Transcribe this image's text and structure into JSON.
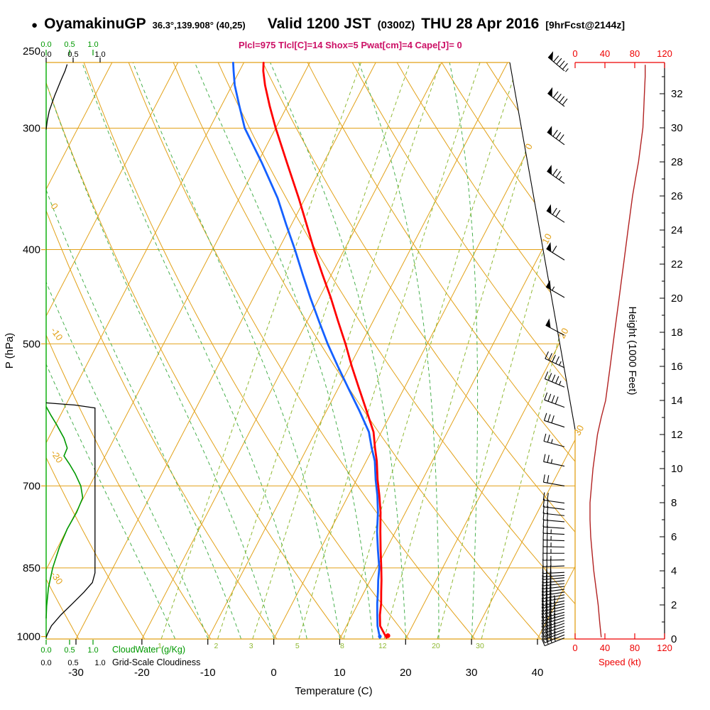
{
  "header": {
    "bullet": "●",
    "station": "OyamakinuGP",
    "coords": "36.3°,139.908° (40,25)",
    "valid": "Valid 1200 JST",
    "valid_z": "(0300Z)",
    "valid_date": "THU 28 Apr 2016",
    "fcst_tag": "[9hrFcst@2144z]",
    "indices_line": "Plcl=975 Tlcl[C]=14 Shox=5 Pwat[cm]=4 Cape[J]= 0"
  },
  "axis_titles": {
    "pressure": "P (hPa)",
    "temperature": "Temperature (C)",
    "height": "Height (1000 Feet)",
    "speed": "Speed (kt)"
  },
  "scale_labels": {
    "cloud_values": [
      "0.0",
      "0.5",
      "1.0"
    ],
    "cloudwater": "CloudWater (g/Kg)",
    "cloudiness": "Grid-Scale Cloudiness"
  },
  "colors": {
    "grid": "#e2a118",
    "mixing": "#8fb832",
    "moist": "#49b04f",
    "temperature": "#ff0000",
    "dewpoint": "#1560ff",
    "cloudwater": "#009900",
    "cloudiness": "#000000",
    "speed_axis": "#ee0000",
    "speed_curve": "#b22222",
    "indices": "#cc1166",
    "left_axis_green": "#00aa00",
    "barbs": "#000000"
  },
  "chart_data": {
    "type": "skewt_log_p_sounding",
    "pressure_ticks_hpa": [
      250,
      300,
      400,
      500,
      700,
      850,
      1000
    ],
    "temperature_ticks_c": [
      -30,
      -20,
      -10,
      0,
      10,
      20,
      30,
      40
    ],
    "height_ticks_kft": [
      0,
      2,
      4,
      6,
      8,
      10,
      12,
      14,
      16,
      18,
      20,
      22,
      24,
      26,
      28,
      30,
      32
    ],
    "speed_ticks_kt": [
      0,
      40,
      80,
      120
    ],
    "isotherm_label_values": [
      0,
      10,
      20,
      30
    ],
    "dry_adiabat_label_values": [
      0,
      -10,
      -20,
      -30
    ],
    "mixing_ratio_lines_gkg": [
      1,
      2,
      3,
      5,
      8,
      12,
      20,
      30
    ],
    "temperature_profile_p_c": [
      [
        1003,
        17
      ],
      [
        975,
        15.1
      ],
      [
        950,
        14.2
      ],
      [
        925,
        13.5
      ],
      [
        900,
        12.6
      ],
      [
        875,
        11.7
      ],
      [
        850,
        10.7
      ],
      [
        815,
        9.2
      ],
      [
        780,
        7.7
      ],
      [
        745,
        6.2
      ],
      [
        716,
        4.7
      ],
      [
        690,
        3.2
      ],
      [
        660,
        1.6
      ],
      [
        640,
        0.3
      ],
      [
        616,
        -1.2
      ],
      [
        585,
        -4.0
      ],
      [
        556,
        -6.8
      ],
      [
        528,
        -9.6
      ],
      [
        500,
        -12.4
      ],
      [
        474,
        -15.3
      ],
      [
        448,
        -18.3
      ],
      [
        424,
        -21.4
      ],
      [
        400,
        -24.6
      ],
      [
        377,
        -27.7
      ],
      [
        354,
        -31.0
      ],
      [
        326,
        -35.5
      ],
      [
        300,
        -40.0
      ],
      [
        285,
        -42.6
      ],
      [
        271,
        -45.0
      ],
      [
        262,
        -46.4
      ],
      [
        257,
        -47.0
      ]
    ],
    "dewpoint_profile_p_c": [
      [
        1003,
        16
      ],
      [
        975,
        14.7
      ],
      [
        950,
        13.8
      ],
      [
        925,
        12.9
      ],
      [
        900,
        12.1
      ],
      [
        875,
        11.2
      ],
      [
        850,
        10.4
      ],
      [
        815,
        8.8
      ],
      [
        780,
        7.2
      ],
      [
        745,
        5.8
      ],
      [
        716,
        4.4
      ],
      [
        690,
        2.9
      ],
      [
        660,
        1.3
      ],
      [
        640,
        -0.2
      ],
      [
        616,
        -1.9
      ],
      [
        585,
        -5.1
      ],
      [
        556,
        -8.4
      ],
      [
        528,
        -11.7
      ],
      [
        500,
        -15.1
      ],
      [
        474,
        -18.2
      ],
      [
        448,
        -21.4
      ],
      [
        424,
        -24.4
      ],
      [
        400,
        -27.5
      ],
      [
        377,
        -30.8
      ],
      [
        354,
        -34.2
      ],
      [
        326,
        -39.3
      ],
      [
        300,
        -44.7
      ],
      [
        285,
        -47.2
      ],
      [
        271,
        -49.6
      ],
      [
        262,
        -50.9
      ],
      [
        257,
        -51.6
      ]
    ],
    "cloudwater_profile_p_gkg": [
      [
        580,
        0
      ],
      [
        592,
        0.1
      ],
      [
        605,
        0.22
      ],
      [
        625,
        0.38
      ],
      [
        640,
        0.45
      ],
      [
        652,
        0.38
      ],
      [
        665,
        0.5
      ],
      [
        680,
        0.62
      ],
      [
        700,
        0.74
      ],
      [
        720,
        0.78
      ],
      [
        745,
        0.65
      ],
      [
        775,
        0.45
      ],
      [
        810,
        0.28
      ],
      [
        850,
        0.14
      ],
      [
        890,
        0.05
      ],
      [
        930,
        0.01
      ],
      [
        958,
        0
      ]
    ],
    "cloudiness_profile_segments": [
      [
        [
          258,
          0.4
        ],
        [
          262,
          0.36
        ],
        [
          268,
          0.28
        ],
        [
          278,
          0.16
        ],
        [
          288,
          0.06
        ],
        [
          295,
          0.02
        ],
        [
          301,
          0
        ]
      ],
      [
        [
          575,
          0
        ],
        [
          578,
          0.55
        ],
        [
          582,
          0.93
        ],
        [
          860,
          0.93
        ],
        [
          880,
          0.88
        ],
        [
          900,
          0.72
        ],
        [
          925,
          0.5
        ],
        [
          950,
          0.28
        ],
        [
          975,
          0.1
        ],
        [
          995,
          0.02
        ],
        [
          1002,
          0
        ]
      ]
    ],
    "wind_speed_profile_kft_kt": [
      [
        0.1,
        35
      ],
      [
        1,
        33
      ],
      [
        2,
        31
      ],
      [
        3,
        28
      ],
      [
        4,
        25
      ],
      [
        5,
        23
      ],
      [
        6,
        21
      ],
      [
        7,
        20
      ],
      [
        8,
        20
      ],
      [
        9,
        22
      ],
      [
        10,
        24
      ],
      [
        11,
        27
      ],
      [
        12,
        30
      ],
      [
        13,
        35
      ],
      [
        14,
        41
      ],
      [
        15,
        44
      ],
      [
        16,
        47
      ],
      [
        17,
        50
      ],
      [
        18,
        53
      ],
      [
        19,
        56
      ],
      [
        20,
        59
      ],
      [
        21,
        62
      ],
      [
        22,
        65
      ],
      [
        23,
        68
      ],
      [
        24,
        71
      ],
      [
        25,
        74
      ],
      [
        26,
        77
      ],
      [
        27,
        81
      ],
      [
        28,
        85
      ],
      [
        29,
        88
      ],
      [
        30,
        91
      ],
      [
        31,
        92
      ],
      [
        32,
        93
      ],
      [
        33,
        94
      ],
      [
        33.7,
        94
      ]
    ],
    "wind_barbs_p_dir_kt": [
      [
        262,
        310,
        95
      ],
      [
        285,
        308,
        90
      ],
      [
        312,
        306,
        82
      ],
      [
        342,
        305,
        75
      ],
      [
        375,
        303,
        68
      ],
      [
        410,
        302,
        61
      ],
      [
        448,
        300,
        55
      ],
      [
        490,
        298,
        49
      ],
      [
        529,
        295,
        46
      ],
      [
        554,
        293,
        44
      ],
      [
        581,
        290,
        38
      ],
      [
        609,
        288,
        32
      ],
      [
        638,
        285,
        27
      ],
      [
        668,
        282,
        23
      ],
      [
        700,
        280,
        20
      ],
      [
        729,
        278,
        20
      ],
      [
        740,
        277,
        20
      ],
      [
        751,
        276,
        21
      ],
      [
        762,
        275,
        21
      ],
      [
        774,
        274,
        22
      ],
      [
        785,
        273,
        23
      ],
      [
        797,
        272,
        24
      ],
      [
        809,
        271,
        25
      ],
      [
        821,
        270,
        26
      ],
      [
        834,
        269,
        27
      ],
      [
        846,
        268,
        28
      ],
      [
        859,
        267,
        28
      ],
      [
        865,
        266,
        29
      ],
      [
        870,
        265,
        29
      ],
      [
        876,
        264,
        30
      ],
      [
        882,
        264,
        30
      ],
      [
        888,
        263,
        31
      ],
      [
        894,
        262,
        31
      ],
      [
        900,
        261,
        32
      ],
      [
        906,
        260,
        32
      ],
      [
        912,
        259,
        33
      ],
      [
        919,
        258,
        33
      ],
      [
        925,
        258,
        34
      ],
      [
        931,
        257,
        34
      ],
      [
        937,
        256,
        34
      ],
      [
        944,
        255,
        35
      ],
      [
        950,
        254,
        35
      ],
      [
        956,
        253,
        35
      ],
      [
        963,
        252,
        36
      ],
      [
        969,
        251,
        36
      ],
      [
        976,
        251,
        36
      ],
      [
        983,
        250,
        36
      ],
      [
        989,
        249,
        35
      ],
      [
        996,
        248,
        35
      ],
      [
        1003,
        248,
        35
      ]
    ]
  }
}
